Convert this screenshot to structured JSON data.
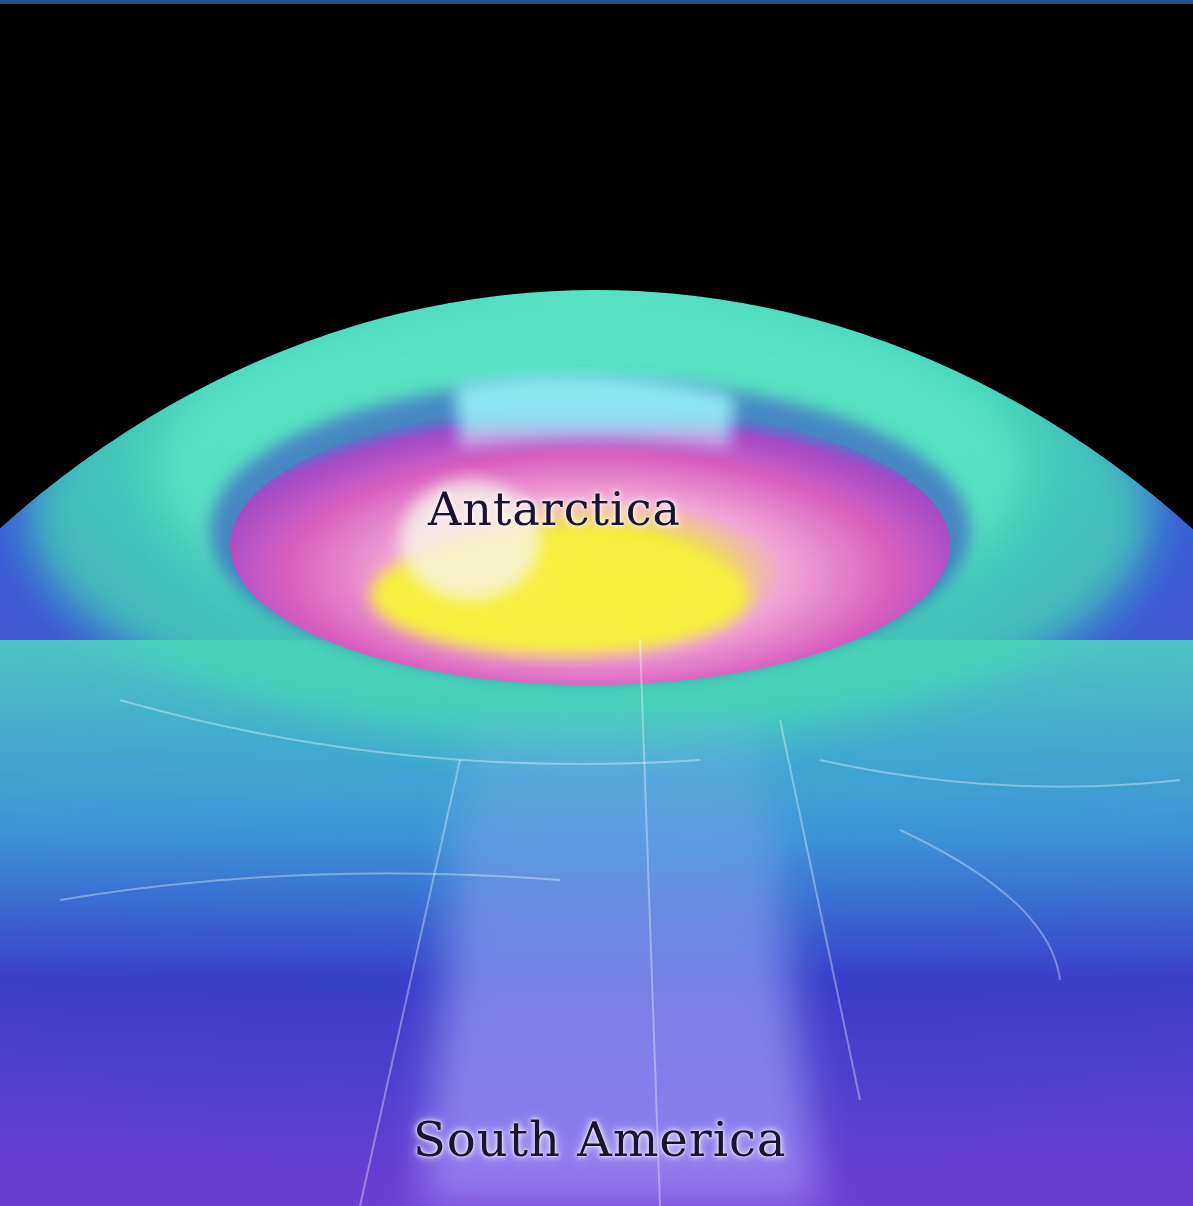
{
  "map": {
    "labels": {
      "antarctica": "Antarctica",
      "south_america": "South America"
    },
    "colors": {
      "space": "#000000",
      "low_ozone_center": "#f3ef3c",
      "hole_rim": "#d65fc0",
      "inner_ring": "#7ee8e4",
      "mid_ring": "#45d8b8",
      "outer": "#3438c4",
      "outer_purple": "#7a3fd0",
      "label_text": "#1b1330"
    }
  }
}
